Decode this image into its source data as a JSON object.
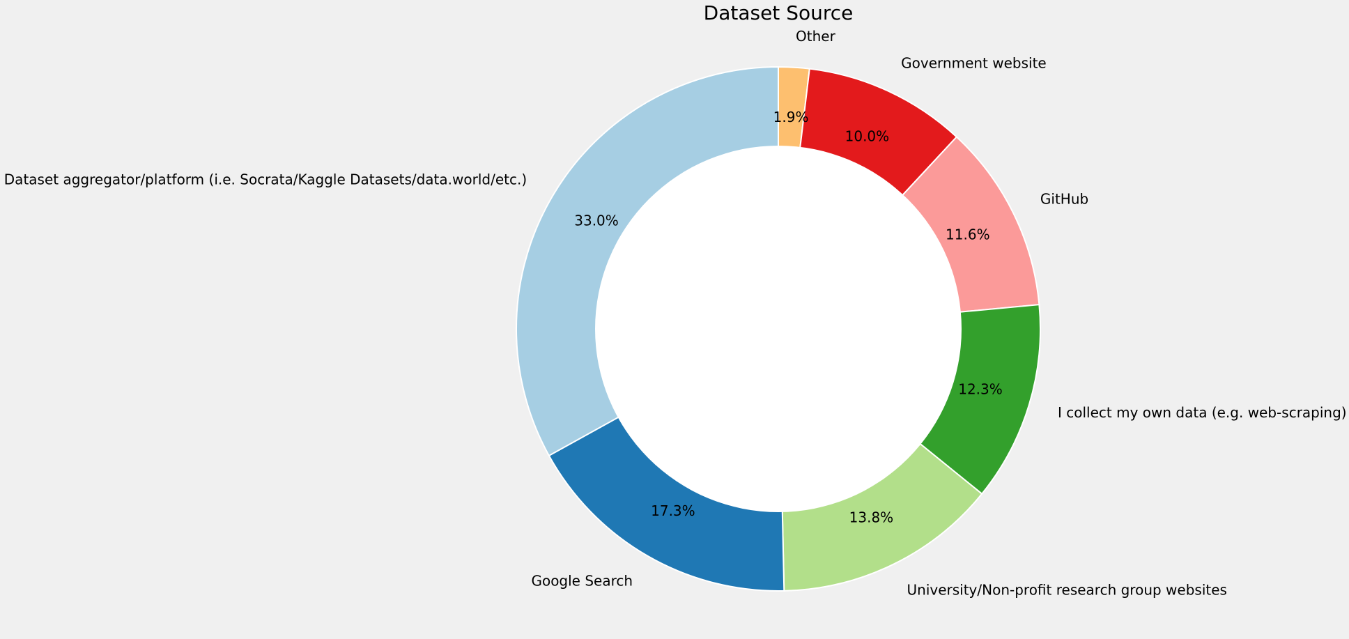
{
  "chart_data": {
    "type": "pie",
    "donut": true,
    "title": "Dataset Source",
    "slices": [
      {
        "label": "Other",
        "value": 1.9,
        "pct_label": "1.9%",
        "color": "#fdbf6f"
      },
      {
        "label": "Government website",
        "value": 10.0,
        "pct_label": "10.0%",
        "color": "#e31a1c"
      },
      {
        "label": "GitHub",
        "value": 11.6,
        "pct_label": "11.6%",
        "color": "#fb9a99"
      },
      {
        "label": "I collect my own data (e.g. web-scraping)",
        "value": 12.3,
        "pct_label": "12.3%",
        "color": "#33a02c"
      },
      {
        "label": "University/Non-profit research group websites",
        "value": 13.8,
        "pct_label": "13.8%",
        "color": "#b2df8a"
      },
      {
        "label": "Google Search",
        "value": 17.3,
        "pct_label": "17.3%",
        "color": "#1f78b4"
      },
      {
        "label": "Dataset aggregator/platform (i.e. Socrata/Kaggle Datasets/data.world/etc.)",
        "value": 33.0,
        "pct_label": "33.0%",
        "color": "#a6cee3"
      }
    ],
    "start_angle": "top",
    "direction": "clockwise",
    "background": "#f0f0f0",
    "hole_color": "#ffffff"
  }
}
